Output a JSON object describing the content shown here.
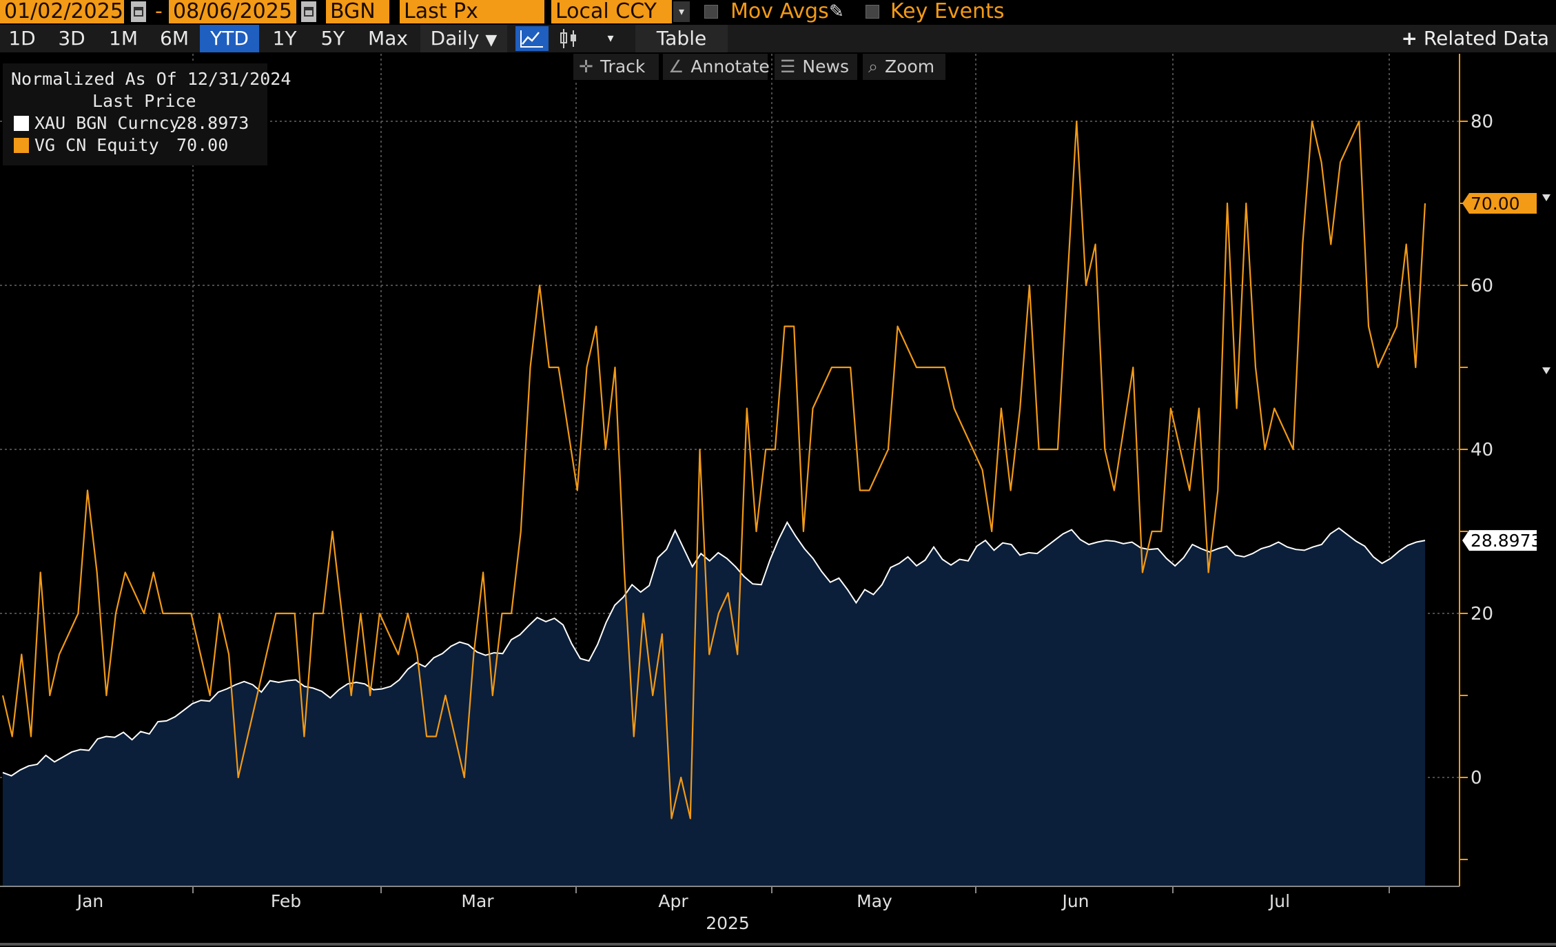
{
  "toolbar": {
    "start_date": "01/02/2025",
    "date_separator": "-",
    "end_date": "08/06/2025",
    "source": "BGN",
    "field": "Last Px",
    "currency": "Local CCY",
    "mov_avgs_label": "Mov Avgs",
    "key_events_label": "Key Events",
    "icons": [
      "calendar-icon",
      "dropdown-arrow-icon",
      "pencil-icon",
      "checkbox-icon"
    ]
  },
  "range_bar": {
    "buttons": [
      "1D",
      "3D",
      "1M",
      "6M",
      "YTD",
      "1Y",
      "5Y",
      "Max"
    ],
    "selected": "YTD",
    "frequency": "Daily",
    "frequency_arrow": "▼",
    "table_label": "Table",
    "related_label": "Related Data",
    "icons": [
      "line-chart-icon",
      "candlestick-icon",
      "dropdown-arrow-icon",
      "plus-icon"
    ],
    "active_color": "#1f5fbf"
  },
  "chart_tools": [
    {
      "label": "Track",
      "icon": "crosshair-icon"
    },
    {
      "label": "Annotate",
      "icon": "pen-icon"
    },
    {
      "label": "News",
      "icon": "list-icon"
    },
    {
      "label": "Zoom",
      "icon": "magnifier-icon"
    }
  ],
  "legend": {
    "title_line1": "Normalized As Of 12/31/2024",
    "title_line2": "Last Price",
    "entries": [
      {
        "name": "XAU BGN Curncy",
        "value": "28.8973",
        "color": "#ffffff"
      },
      {
        "name": "VG CN Equity",
        "value": "70.00",
        "color": "#f39a16"
      }
    ]
  },
  "chart_data": {
    "type": "line",
    "x_unit": "trading day index from 01/02/2025",
    "x_month_labels": [
      "Jan",
      "Feb",
      "Mar",
      "Apr",
      "May",
      "Jun",
      "Jul"
    ],
    "x_year_label": "2025",
    "y_ticks": [
      0,
      20,
      40,
      60,
      80
    ],
    "ylim": [
      -10,
      88
    ],
    "grid": true,
    "series": [
      {
        "name": "XAU BGN Curncy",
        "kind": "area",
        "color": "#ffffff",
        "fill": "#0b1f3a",
        "last_label": "28.8973",
        "values": [
          0.6,
          0.2,
          0.9,
          1.4,
          1.6,
          2.7,
          1.9,
          2.5,
          3.1,
          3.4,
          3.3,
          4.7,
          5.0,
          4.9,
          5.5,
          4.6,
          5.6,
          5.3,
          6.8,
          6.9,
          7.4,
          8.2,
          9.0,
          9.4,
          9.3,
          10.4,
          10.8,
          11.3,
          11.7,
          11.3,
          10.4,
          11.8,
          11.6,
          11.8,
          11.9,
          11.1,
          10.9,
          10.5,
          9.7,
          10.7,
          11.4,
          11.6,
          11.4,
          10.7,
          10.8,
          11.1,
          11.9,
          13.2,
          14.0,
          13.5,
          14.6,
          15.1,
          16.0,
          16.5,
          16.2,
          15.3,
          14.9,
          15.2,
          15.1,
          16.8,
          17.4,
          18.5,
          19.5,
          19.0,
          19.4,
          18.6,
          16.3,
          14.5,
          14.2,
          16.2,
          18.9,
          21.0,
          22.0,
          23.5,
          22.6,
          23.4,
          26.8,
          27.8,
          30.1,
          27.9,
          25.7,
          27.3,
          26.4,
          27.4,
          26.7,
          25.7,
          24.5,
          23.6,
          23.5,
          26.5,
          29.0,
          31.1,
          29.4,
          27.9,
          26.7,
          25.1,
          23.8,
          24.3,
          22.9,
          21.3,
          22.9,
          22.3,
          23.5,
          25.6,
          26.1,
          26.9,
          25.8,
          26.5,
          28.1,
          26.6,
          25.9,
          26.6,
          26.4,
          28.2,
          28.9,
          27.7,
          28.6,
          28.4,
          27.1,
          27.4,
          27.3,
          28.1,
          28.9,
          29.7,
          30.2,
          29.0,
          28.4,
          28.7,
          28.9,
          28.8,
          28.5,
          28.7,
          28.0,
          27.8,
          27.9,
          26.7,
          25.8,
          26.8,
          28.4,
          27.9,
          27.5,
          27.9,
          28.2,
          27.1,
          26.9,
          27.3,
          27.9,
          28.2,
          28.7,
          28.1,
          27.8,
          27.7,
          28.1,
          28.4,
          29.7,
          30.4,
          29.6,
          28.8,
          28.2,
          26.9,
          26.1,
          26.7,
          27.6,
          28.3,
          28.7,
          28.9
        ]
      },
      {
        "name": "VG CN Equity",
        "kind": "line",
        "color": "#f39a16",
        "last_label": "70.00",
        "values": [
          10,
          5,
          15,
          5,
          25,
          10,
          15,
          17.5,
          20,
          35,
          25,
          10,
          20,
          25,
          22.5,
          20,
          25,
          20,
          20,
          20,
          20,
          15,
          10,
          20,
          15,
          0,
          5,
          10,
          15,
          20,
          20,
          20,
          5,
          20,
          20,
          30,
          20,
          10,
          20,
          10,
          20,
          17.5,
          15,
          20,
          15,
          5,
          5,
          10,
          5,
          0,
          15,
          25,
          10,
          20,
          20,
          30,
          50,
          60,
          50,
          50,
          42.5,
          35,
          50,
          55,
          40,
          50,
          25,
          5,
          20,
          10,
          17.5,
          -5,
          0,
          -5,
          40,
          15,
          20,
          22.5,
          15,
          45,
          30,
          40,
          40,
          55,
          55,
          30,
          45,
          47.5,
          50,
          50,
          50,
          35,
          35,
          37.5,
          40,
          55,
          52.5,
          50,
          50,
          50,
          50,
          45,
          42.5,
          40,
          37.5,
          30,
          45,
          35,
          45,
          60,
          40,
          40,
          40,
          60,
          80,
          60,
          65,
          40,
          35,
          42.5,
          50,
          25,
          30,
          30,
          45,
          40,
          35,
          45,
          25,
          35,
          70,
          45,
          70,
          50,
          40,
          45,
          42.5,
          40,
          65,
          80,
          75,
          65,
          75,
          77.5,
          80,
          55,
          50,
          52.5,
          55,
          65,
          50,
          70
        ]
      }
    ]
  }
}
